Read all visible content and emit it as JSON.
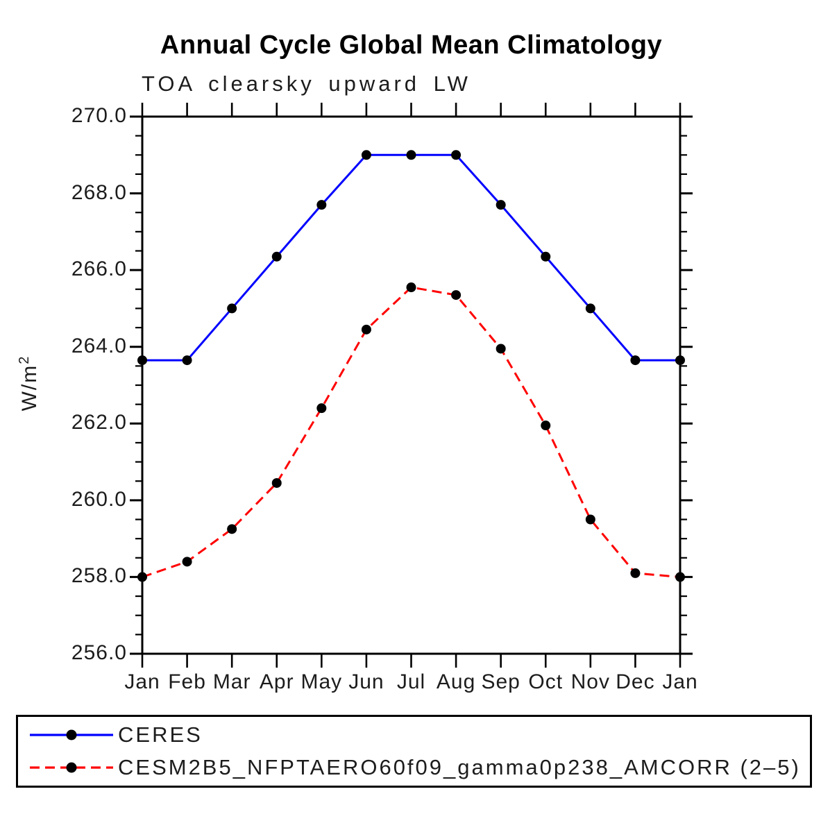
{
  "page": {
    "background": "#ffffff"
  },
  "chart_data": {
    "type": "line",
    "title": "Annual Cycle Global Mean Climatology",
    "subtitle": "TOA clearsky upward LW",
    "ylabel": "W/m²",
    "xlabel": "",
    "x_tick_labels": [
      "Jan",
      "Feb",
      "Mar",
      "Apr",
      "May",
      "Jun",
      "Jul",
      "Aug",
      "Sep",
      "Oct",
      "Nov",
      "Dec",
      "Jan"
    ],
    "ylim": [
      256.0,
      270.0
    ],
    "y_major_tick_labels": [
      "256.0",
      "258.0",
      "260.0",
      "262.0",
      "264.0",
      "266.0",
      "268.0",
      "270.0"
    ],
    "y_major_tick_values": [
      256,
      258,
      260,
      262,
      264,
      266,
      268,
      270
    ],
    "y_minor_tick_step": 0.5,
    "grid": "off",
    "legend_position": "bottom-box",
    "axis_color": "#000000",
    "marker_color": "#000000",
    "series": [
      {
        "name": "CERES",
        "color": "#0000ff",
        "line_style": "solid",
        "marker": "filled-circle",
        "values": [
          263.65,
          263.65,
          265.0,
          266.35,
          267.7,
          269.0,
          269.0,
          269.0,
          267.7,
          266.35,
          265.0,
          263.65,
          263.65
        ]
      },
      {
        "name": "CESM2B5_NFPTAERO60f09_gamma0p238_AMCORR (2–5)",
        "color": "#ff0000",
        "line_style": "dashed",
        "marker": "filled-circle",
        "values": [
          258.0,
          258.4,
          259.25,
          260.45,
          262.4,
          264.45,
          265.55,
          265.35,
          263.95,
          261.95,
          259.5,
          258.1,
          258.0
        ]
      }
    ]
  }
}
